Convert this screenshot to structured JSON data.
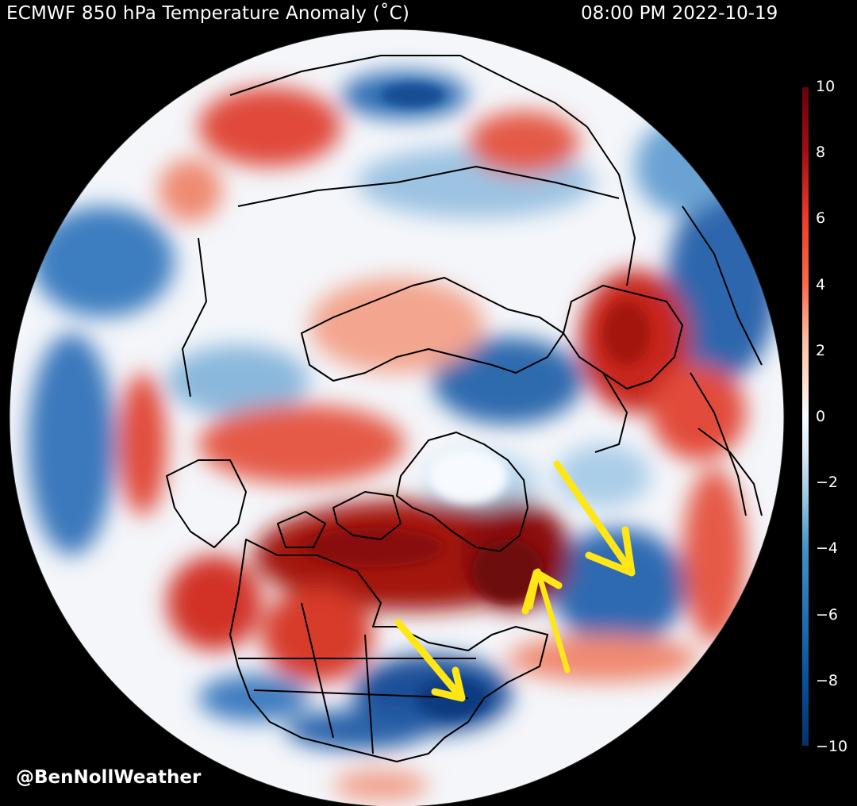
{
  "header": {
    "title": "ECMWF 850 hPa Temperature Anomaly (˚C)",
    "timestamp": "08:00 PM 2022-10-19"
  },
  "footer": {
    "credit": "@BenNollWeather"
  },
  "colorbar": {
    "ticks": [
      "10",
      "8",
      "6",
      "4",
      "2",
      "0",
      "−2",
      "−4",
      "−6",
      "−8",
      "−10"
    ],
    "range": [
      -10,
      10
    ],
    "colors": [
      "#08306b",
      "#08519c",
      "#2171b5",
      "#4292c6",
      "#6baed6",
      "#9ecae1",
      "#c6dbef",
      "#deebf7",
      "#f7fbff",
      "#fff5f0",
      "#fee0d2",
      "#fcbba1",
      "#fc9272",
      "#fb6a4a",
      "#ef3b2c",
      "#cb181d",
      "#a50f15",
      "#67000d"
    ]
  },
  "map": {
    "projection": "orthographic north-polar",
    "land_outline_color": "#000000",
    "annotation_color": "#ffe617",
    "annotations": [
      "arrow-1",
      "arrow-2",
      "arrow-3"
    ]
  }
}
